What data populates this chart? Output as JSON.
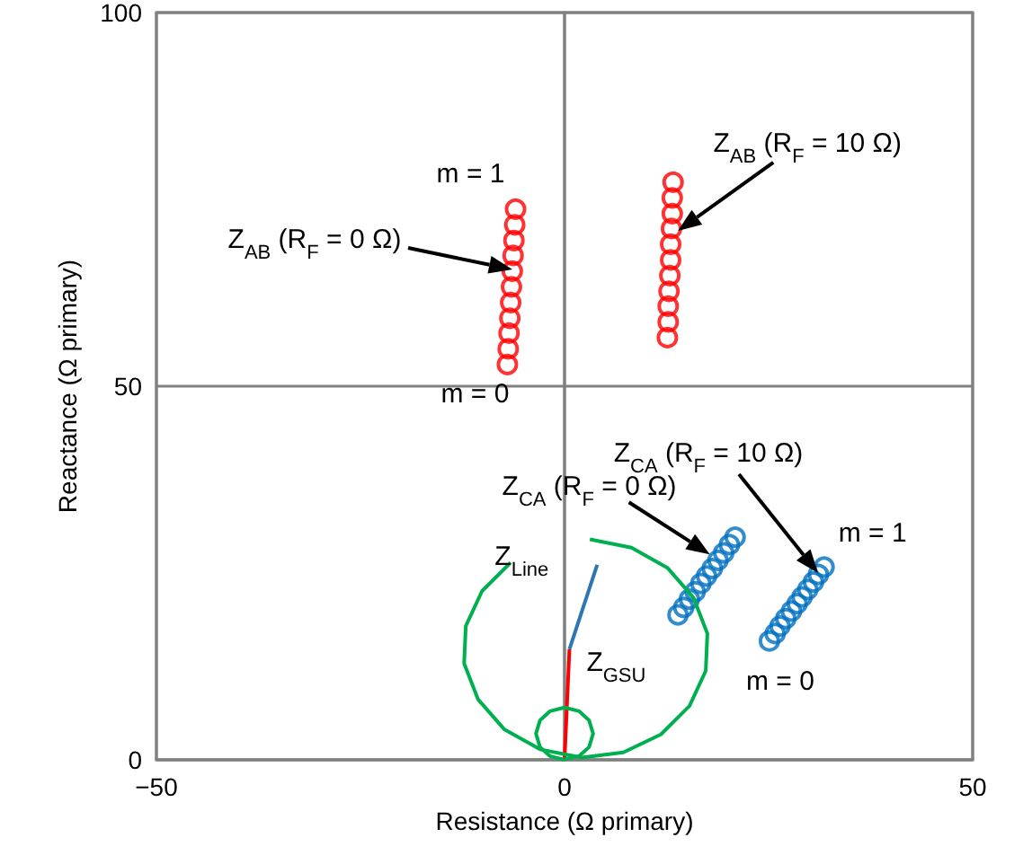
{
  "chart_data": {
    "type": "scatter",
    "xlabel": "Resistance (Ω primary)",
    "ylabel": "Reactance (Ω primary)",
    "xlim": [
      -50,
      50
    ],
    "xticks": [
      {
        "value": -50,
        "label": "−50"
      },
      0,
      50
    ],
    "ylim": [
      0,
      100
    ],
    "yticks": [
      0,
      50,
      100
    ],
    "grid": true,
    "series": [
      {
        "marker": "circle",
        "color": "#ff0000",
        "x": [
          -7.0,
          -6.9,
          -6.8,
          -6.7,
          -6.6,
          -6.5,
          -6.4,
          -6.3,
          -6.2,
          -6.1,
          -6.0
        ],
        "values": [
          52.9,
          55.0,
          57.1,
          59.1,
          61.2,
          63.3,
          65.4,
          67.5,
          69.5,
          71.6,
          73.7
        ]
      },
      {
        "marker": "circle",
        "color": "#ff0000",
        "x": [
          12.6,
          12.7,
          12.7,
          12.8,
          12.9,
          13.0,
          13.0,
          13.1,
          13.2,
          13.2,
          13.3
        ],
        "values": [
          56.5,
          58.6,
          60.7,
          62.7,
          64.8,
          66.9,
          69.0,
          71.1,
          73.1,
          75.2,
          77.3
        ]
      },
      {
        "marker": "circle",
        "color": "#0070c0",
        "x": [
          13.9,
          14.6,
          15.3,
          16.0,
          16.7,
          17.4,
          18.1,
          18.8,
          19.5,
          20.2,
          20.9
        ],
        "values": [
          19.4,
          20.4,
          21.5,
          22.5,
          23.6,
          24.6,
          25.6,
          26.7,
          27.7,
          28.8,
          29.8
        ]
      },
      {
        "marker": "circle",
        "color": "#0070c0",
        "x": [
          25.1,
          25.8,
          26.4,
          27.1,
          27.8,
          28.5,
          29.1,
          29.8,
          30.5,
          31.1,
          31.8
        ],
        "values": [
          15.9,
          16.9,
          17.9,
          18.9,
          19.9,
          20.9,
          21.8,
          22.8,
          23.8,
          24.8,
          25.8
        ]
      },
      {
        "type": "line",
        "marker": "none",
        "color": "#ff0000",
        "x": [
          0,
          0.6
        ],
        "values": [
          0,
          14.8
        ]
      },
      {
        "type": "line",
        "marker": "none",
        "color": "#2e75b6",
        "x": [
          0.6,
          4.0
        ],
        "values": [
          14.8,
          26.1
        ]
      },
      {
        "type": "line",
        "marker": "none",
        "color": "#00b050",
        "x": [
          -6.6,
          -10.1,
          -12.1,
          -12.3,
          -10.6,
          -7.4,
          -3.0,
          2.1,
          7.2,
          11.8,
          15.3,
          17.3,
          17.5,
          15.8,
          12.6,
          8.2,
          3.1
        ],
        "values": [
          26.4,
          22.6,
          17.9,
          12.9,
          8.1,
          4.1,
          1.4,
          0.3,
          1.0,
          3.4,
          7.2,
          11.9,
          16.9,
          21.7,
          25.7,
          28.4,
          29.5
        ]
      },
      {
        "type": "line",
        "marker": "none",
        "color": "#00b050",
        "x": [
          0,
          -1.8,
          -3.0,
          -3.5,
          -3.0,
          -1.8,
          0,
          1.8,
          3.0,
          3.5,
          3.0,
          1.8,
          0
        ],
        "values": [
          0,
          0.5,
          1.7,
          3.5,
          5.3,
          6.5,
          7.0,
          6.5,
          5.3,
          3.5,
          1.7,
          0.5,
          0.1
        ]
      }
    ],
    "annotations": [
      "Z$_{AB}$ (R$_{F}$ = 0 Ω)",
      {
        "text": "Z$_{AB}$ (R$_{F}$ = 10 Ω)",
        "x": 13.9,
        "y": 70.8
      },
      {
        "text": "Z$_{CA}$ (R$_{F}$ = 0 Ω)",
        "x": 17.8,
        "y": 27.5
      },
      "Z$_{CA}$ (R$_{F}$ = 10 Ω)",
      {
        "text": "m = 1",
        "x": -6.0,
        "y": 73.7
      },
      {
        "text": "m = 0",
        "x": -7.0,
        "y": 52.9
      },
      {
        "text": "m = 1",
        "x": 31.8,
        "y": 25.8
      },
      {
        "text": "m = 0",
        "x": 25.1,
        "y": 15.9
      },
      {
        "text": "Z$_{Line}$",
        "x": 4.0,
        "y": 26.1
      },
      {
        "text": "Z$_{GSU}$",
        "x": 0.6,
        "y": 14.8
      }
    ]
  }
}
